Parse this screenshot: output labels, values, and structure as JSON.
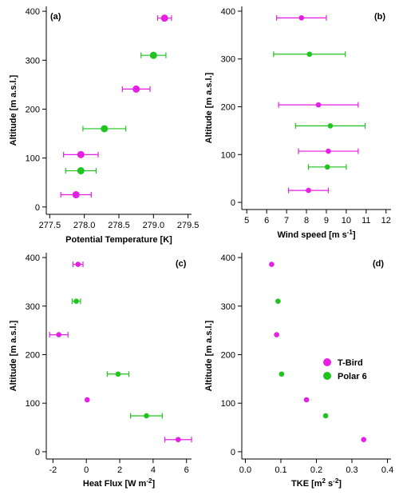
{
  "colors": {
    "t_bird": "#e61ee6",
    "polar6": "#1fc41f",
    "axis": "#000000"
  },
  "legend": {
    "placement": "right-middle of panel (d)",
    "entries": [
      {
        "label": "T-Bird",
        "color": "#e61ee6"
      },
      {
        "label": "Polar 6",
        "color": "#1fc41f"
      }
    ]
  },
  "chart_data": [
    {
      "panel": "(a)",
      "type": "scatter",
      "xlabel": "Potential Temperature [K]",
      "ylabel": "Altitude [m a.s.l.]",
      "xlim": [
        277.45,
        279.55
      ],
      "ylim": [
        -15,
        410
      ],
      "xticks": [
        277.5,
        278.0,
        278.5,
        279.0,
        279.5
      ],
      "xtick_labels": [
        "277.5",
        "278.0",
        "278.5",
        "279.0",
        "279.5"
      ],
      "yticks": [
        0,
        100,
        200,
        300,
        400
      ],
      "ytick_labels": [
        "0",
        "100",
        "200",
        "300",
        "400"
      ],
      "series": [
        {
          "name": "T-Bird",
          "color": "#e61ee6",
          "points": [
            {
              "x": 277.88,
              "y": 25,
              "xerr": 0.22
            },
            {
              "x": 277.95,
              "y": 107,
              "xerr": 0.25
            },
            {
              "x": 278.75,
              "y": 241,
              "xerr": 0.2
            },
            {
              "x": 279.16,
              "y": 386,
              "xerr": 0.1
            }
          ]
        },
        {
          "name": "Polar 6",
          "color": "#1fc41f",
          "points": [
            {
              "x": 277.95,
              "y": 74,
              "xerr": 0.22
            },
            {
              "x": 278.29,
              "y": 160,
              "xerr": 0.31
            },
            {
              "x": 279.0,
              "y": 310,
              "xerr": 0.18
            }
          ]
        }
      ]
    },
    {
      "panel": "(b)",
      "type": "scatter",
      "xlabel": "Wind speed [m s",
      "xlabel_sup": "-1",
      "xlabel_end": "]",
      "ylabel": "Altitude [m a.s.l.]",
      "xlim": [
        4.75,
        12.25
      ],
      "ylim": [
        -15,
        410
      ],
      "xticks": [
        5,
        6,
        7,
        8,
        9,
        10,
        11,
        12
      ],
      "xtick_labels": [
        "5",
        "6",
        "7",
        "8",
        "9",
        "10",
        "11",
        "12"
      ],
      "yticks": [
        0,
        100,
        200,
        300,
        400
      ],
      "ytick_labels": [
        "0",
        "100",
        "200",
        "300",
        "400"
      ],
      "series": [
        {
          "name": "T-Bird",
          "color": "#e61ee6",
          "points": [
            {
              "x": 8.1,
              "y": 25,
              "xerr": 1.0
            },
            {
              "x": 9.1,
              "y": 107,
              "xerr": 1.5
            },
            {
              "x": 8.6,
              "y": 204,
              "xerr": 2.0
            },
            {
              "x": 7.75,
              "y": 386,
              "xerr": 1.25
            }
          ]
        },
        {
          "name": "Polar 6",
          "color": "#1fc41f",
          "points": [
            {
              "x": 9.05,
              "y": 74,
              "xerr": 0.95
            },
            {
              "x": 9.2,
              "y": 160,
              "xerr": 1.75
            },
            {
              "x": 8.15,
              "y": 310,
              "xerr": 1.8
            }
          ]
        }
      ]
    },
    {
      "panel": "(c)",
      "type": "scatter",
      "xlabel": "Heat Flux [W m",
      "xlabel_sup": "-2",
      "xlabel_end": "]",
      "ylabel": "Altitude [m a.s.l.]",
      "xlim": [
        -2.4,
        6.3
      ],
      "ylim": [
        -15,
        410
      ],
      "xticks": [
        -2,
        0,
        2,
        4,
        6
      ],
      "xtick_labels": [
        "-2",
        "0",
        "2",
        "4",
        "6"
      ],
      "yticks": [
        0,
        100,
        200,
        300,
        400
      ],
      "ytick_labels": [
        "0",
        "100",
        "200",
        "300",
        "400"
      ],
      "series": [
        {
          "name": "T-Bird",
          "color": "#e61ee6",
          "points": [
            {
              "x": 5.5,
              "y": 25,
              "xerr": 0.8
            },
            {
              "x": 0.05,
              "y": 107,
              "xerr": 0
            },
            {
              "x": -1.65,
              "y": 241,
              "xerr": 0.55
            },
            {
              "x": -0.5,
              "y": 386,
              "xerr": 0.3
            }
          ]
        },
        {
          "name": "Polar 6",
          "color": "#1fc41f",
          "points": [
            {
              "x": 3.6,
              "y": 74,
              "xerr": 0.95
            },
            {
              "x": 1.9,
              "y": 160,
              "xerr": 0.65
            },
            {
              "x": -0.6,
              "y": 310,
              "xerr": 0.25
            }
          ]
        }
      ]
    },
    {
      "panel": "(d)",
      "type": "scatter",
      "xlabel": "TKE [m",
      "xlabel_sup": "2",
      "xlabel_mid": " s",
      "xlabel_sup2": "-2",
      "xlabel_end": "]",
      "ylabel": "Altitude [m a.s.l.]",
      "xlim": [
        -0.01,
        0.41
      ],
      "ylim": [
        -15,
        410
      ],
      "xticks": [
        0.0,
        0.1,
        0.2,
        0.3,
        0.4
      ],
      "xtick_labels": [
        "0.0",
        "0.1",
        "0.2",
        "0.3",
        "0.4"
      ],
      "yticks": [
        0,
        100,
        200,
        300,
        400
      ],
      "ytick_labels": [
        "0",
        "100",
        "200",
        "300",
        "400"
      ],
      "series": [
        {
          "name": "T-Bird",
          "color": "#e61ee6",
          "points": [
            {
              "x": 0.333,
              "y": 25,
              "xerr": 0
            },
            {
              "x": 0.172,
              "y": 107,
              "xerr": 0
            },
            {
              "x": 0.088,
              "y": 241,
              "xerr": 0
            },
            {
              "x": 0.074,
              "y": 386,
              "xerr": 0
            }
          ]
        },
        {
          "name": "Polar 6",
          "color": "#1fc41f",
          "points": [
            {
              "x": 0.226,
              "y": 74,
              "xerr": 0
            },
            {
              "x": 0.102,
              "y": 160,
              "xerr": 0
            },
            {
              "x": 0.092,
              "y": 310,
              "xerr": 0
            }
          ]
        }
      ]
    }
  ]
}
